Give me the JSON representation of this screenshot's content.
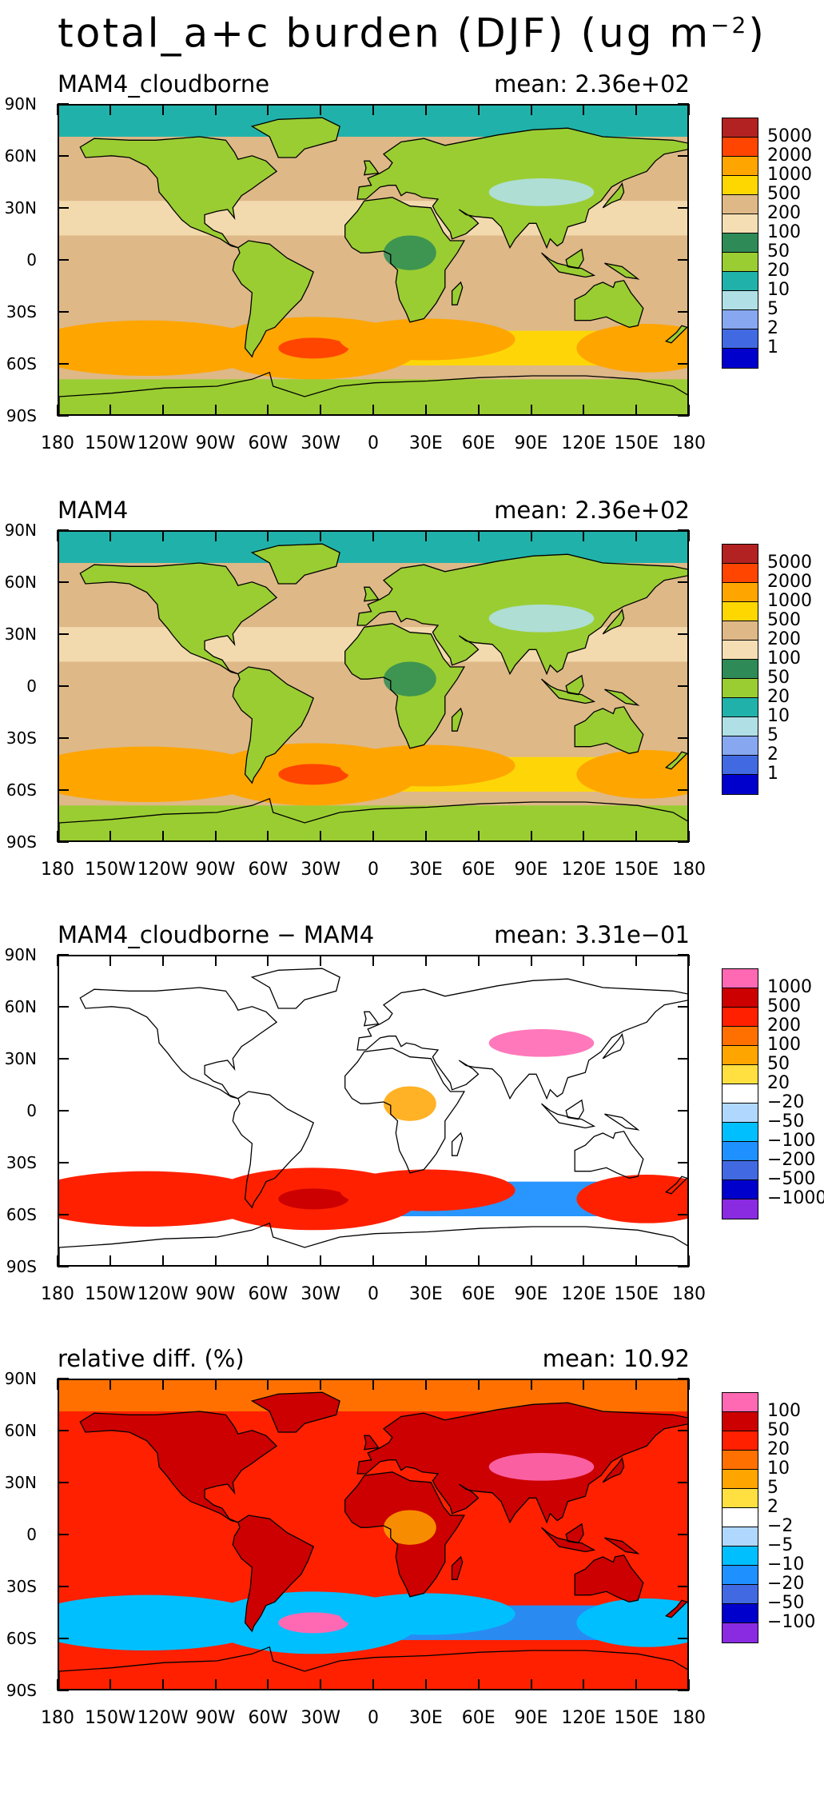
{
  "title": {
    "main": "total_a+c burden (DJF) (ug m",
    "exp": "−2",
    "close": ")"
  },
  "axes": {
    "lat_labels": [
      "90N",
      "60N",
      "30N",
      "0",
      "30S",
      "60S",
      "90S"
    ],
    "lon_labels": [
      "180",
      "150W",
      "120W",
      "90W",
      "60W",
      "30W",
      "0",
      "30E",
      "60E",
      "90E",
      "120E",
      "150E",
      "180"
    ]
  },
  "panels": [
    {
      "name": "MAM4_cloudborne",
      "mean": "mean: 2.36e+02",
      "levels": [
        "5000",
        "2000",
        "1000",
        "500",
        "200",
        "100",
        "50",
        "20",
        "10",
        "5",
        "2",
        "1"
      ],
      "colors": [
        "#b22222",
        "#ff4500",
        "#ffa500",
        "#ffd700",
        "#deb887",
        "#f5deb3",
        "#2e8b57",
        "#9acd32",
        "#20b2aa",
        "#b0e0e6",
        "#87a8f0",
        "#4169e1",
        "#0000cd"
      ],
      "field": {
        "ocean": "#deb887",
        "land": "#9acd32",
        "polar_n": "#20b2aa",
        "polar_s": "#9acd32",
        "storm": "#ffd700",
        "core": "#ffa500",
        "hot": "#ff4500"
      }
    },
    {
      "name": "MAM4",
      "mean": "mean: 2.36e+02",
      "levels": [
        "5000",
        "2000",
        "1000",
        "500",
        "200",
        "100",
        "50",
        "20",
        "10",
        "5",
        "2",
        "1"
      ],
      "colors": [
        "#b22222",
        "#ff4500",
        "#ffa500",
        "#ffd700",
        "#deb887",
        "#f5deb3",
        "#2e8b57",
        "#9acd32",
        "#20b2aa",
        "#b0e0e6",
        "#87a8f0",
        "#4169e1",
        "#0000cd"
      ],
      "field": {
        "ocean": "#deb887",
        "land": "#9acd32",
        "polar_n": "#20b2aa",
        "polar_s": "#9acd32",
        "storm": "#ffd700",
        "core": "#ffa500",
        "hot": "#ff4500"
      }
    },
    {
      "name": "MAM4_cloudborne − MAM4",
      "mean": "mean: 3.31e−01",
      "levels": [
        "1000",
        "500",
        "200",
        "100",
        "50",
        "20",
        "−20",
        "−50",
        "−100",
        "−200",
        "−500",
        "−1000"
      ],
      "colors": [
        "#ff69b4",
        "#cc0000",
        "#ff2000",
        "#ff7000",
        "#ffa500",
        "#ffe040",
        "#ffffff",
        "#b0d8ff",
        "#00bfff",
        "#1e90ff",
        "#4169e1",
        "#0000cd",
        "#8a2be2"
      ],
      "field": {
        "ocean": "#ffffff",
        "land": "#ffffff",
        "polar_n": "#ffffff",
        "polar_s": "#ffffff",
        "storm": "#1e90ff",
        "core": "#ff2000",
        "hot": "#cc0000"
      }
    },
    {
      "name": "relative diff. (%)",
      "mean": "mean: 10.92",
      "levels": [
        "100",
        "50",
        "20",
        "10",
        "5",
        "2",
        "−2",
        "−5",
        "−10",
        "−20",
        "−50",
        "−100"
      ],
      "colors": [
        "#ff69b4",
        "#cc0000",
        "#ff2000",
        "#ff7000",
        "#ffa500",
        "#ffe040",
        "#ffffff",
        "#b0d8ff",
        "#00bfff",
        "#1e90ff",
        "#4169e1",
        "#0000cd",
        "#8a2be2"
      ],
      "field": {
        "ocean": "#ff2000",
        "land": "#cc0000",
        "polar_n": "#ff7000",
        "polar_s": "#ff2000",
        "storm": "#1e90ff",
        "core": "#00bfff",
        "hot": "#ff69b4"
      }
    }
  ]
}
